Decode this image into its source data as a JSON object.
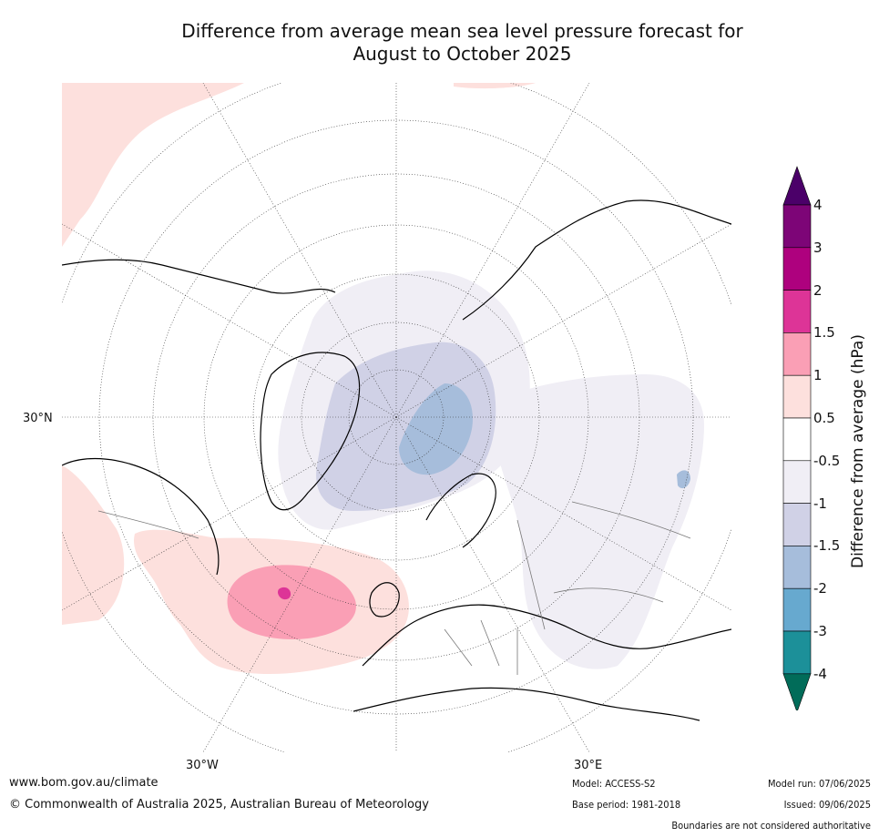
{
  "title_line1": "Difference from average mean sea level pressure forecast for",
  "title_line2": "August to October 2025",
  "graticule_labels": {
    "lat_left": "30°N",
    "lon_left": "30°W",
    "lon_right": "30°E"
  },
  "colorbar": {
    "title": "Difference from average (hPa)",
    "ticks": [
      "4",
      "3",
      "2",
      "1.5",
      "1",
      "0.5",
      "-0.5",
      "-1",
      "-1.5",
      "-2",
      "-3",
      "-4"
    ],
    "bins": [
      {
        "range": "> 4",
        "color": "#4b0069"
      },
      {
        "range": "3 to 4",
        "color": "#7d0577"
      },
      {
        "range": "2 to 3",
        "color": "#ae017e"
      },
      {
        "range": "1.5 to 2",
        "color": "#dd3497"
      },
      {
        "range": "1 to 1.5",
        "color": "#fa9fb5"
      },
      {
        "range": "0.5 to 1",
        "color": "#fde0dd"
      },
      {
        "range": "-0.5 to 0.5",
        "color": "#ffffff"
      },
      {
        "range": "-1 to -0.5",
        "color": "#f0eef5"
      },
      {
        "range": "-1.5 to -1",
        "color": "#d0d1e6"
      },
      {
        "range": "-2 to -1.5",
        "color": "#a6bddb"
      },
      {
        "range": "-3 to -2",
        "color": "#67a9cf"
      },
      {
        "range": "-4 to -3",
        "color": "#1c9099"
      },
      {
        "range": "< -4",
        "color": "#016c59"
      }
    ]
  },
  "footer": {
    "url": "www.bom.gov.au/climate",
    "copyright": "© Commonwealth of Australia 2025, Australian Bureau of Meteorology",
    "model": "Model: ACCESS-S2",
    "base_period": "Base period: 1981-2018",
    "model_run": "Model run: 07/06/2025",
    "issued": "Issued: 09/06/2025",
    "disclaimer": "Boundaries are not considered authoritative"
  }
}
